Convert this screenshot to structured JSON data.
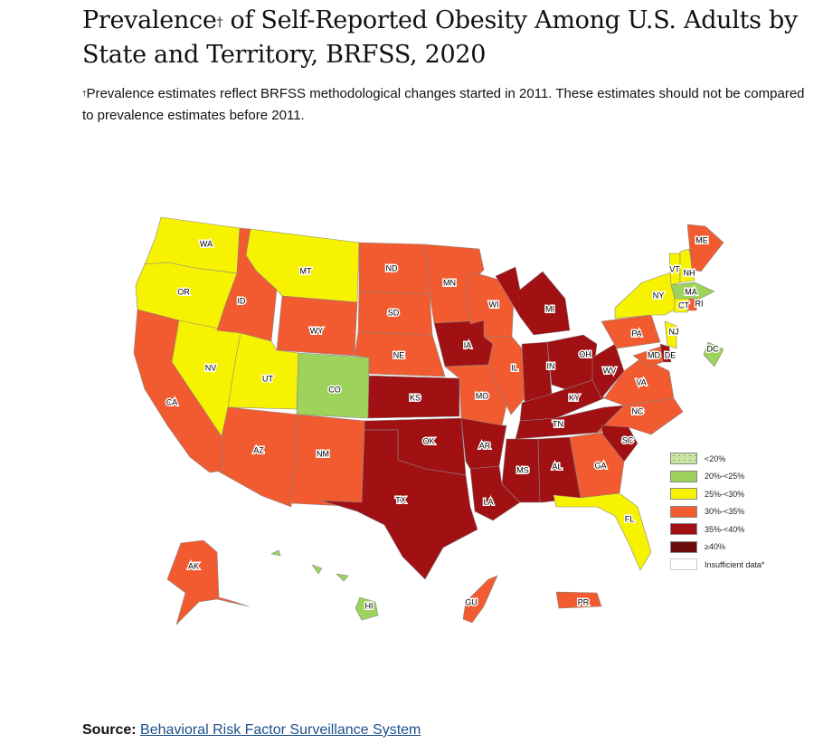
{
  "title": {
    "text": "Prevalence",
    "dagger": "†",
    "rest": " of Self-Reported Obesity Among U.S. Adults by State and Territory, BRFSS, 2020"
  },
  "note": {
    "dagger": "†",
    "text": "Prevalence estimates reflect BRFSS methodological changes started in 2011. These estimates should not be compared to prevalence estimates before 2011."
  },
  "source": {
    "label": "Source:",
    "link_text": "Behavioral Risk Factor Surveillance System"
  },
  "chart_data": {
    "type": "choropleth",
    "title": "Prevalence of Self-Reported Obesity Among U.S. Adults by State and Territory, BRFSS, 2020",
    "legend": [
      {
        "key": "lt20",
        "label": "<20%",
        "color": "#c8e6a0"
      },
      {
        "key": "20_25",
        "label": "20%-<25%",
        "color": "#9dd35a"
      },
      {
        "key": "25_30",
        "label": "25%-<30%",
        "color": "#f7f200"
      },
      {
        "key": "30_35",
        "label": "30%-<35%",
        "color": "#f25b30"
      },
      {
        "key": "35_40",
        "label": "35%-<40%",
        "color": "#a11013"
      },
      {
        "key": "ge40",
        "label": "≥40%",
        "color": "#6b0b0c"
      },
      {
        "key": "na",
        "label": "Insufficient data*",
        "color": "#ffffff"
      }
    ],
    "legend_position": "right",
    "states": {
      "WA": "25_30",
      "OR": "25_30",
      "CA": "30_35",
      "NV": "25_30",
      "ID": "30_35",
      "MT": "25_30",
      "WY": "30_35",
      "UT": "25_30",
      "CO": "20_25",
      "AZ": "30_35",
      "NM": "30_35",
      "ND": "30_35",
      "SD": "30_35",
      "NE": "30_35",
      "KS": "35_40",
      "OK": "35_40",
      "TX": "35_40",
      "MN": "30_35",
      "IA": "35_40",
      "MO": "30_35",
      "AR": "35_40",
      "LA": "35_40",
      "WI": "30_35",
      "IL": "30_35",
      "MI": "35_40",
      "IN": "35_40",
      "OH": "35_40",
      "KY": "35_40",
      "TN": "35_40",
      "MS": "35_40",
      "AL": "35_40",
      "WV": "35_40",
      "VA": "30_35",
      "NC": "30_35",
      "SC": "35_40",
      "GA": "30_35",
      "FL": "25_30",
      "PA": "30_35",
      "NY": "25_30",
      "NJ": "25_30",
      "DE": "35_40",
      "MD": "30_35",
      "DC": "20_25",
      "VT": "25_30",
      "NH": "25_30",
      "ME": "30_35",
      "MA": "20_25",
      "CT": "25_30",
      "RI": "30_35",
      "AK": "30_35",
      "HI": "20_25",
      "GU": "30_35",
      "PR": "30_35"
    }
  }
}
